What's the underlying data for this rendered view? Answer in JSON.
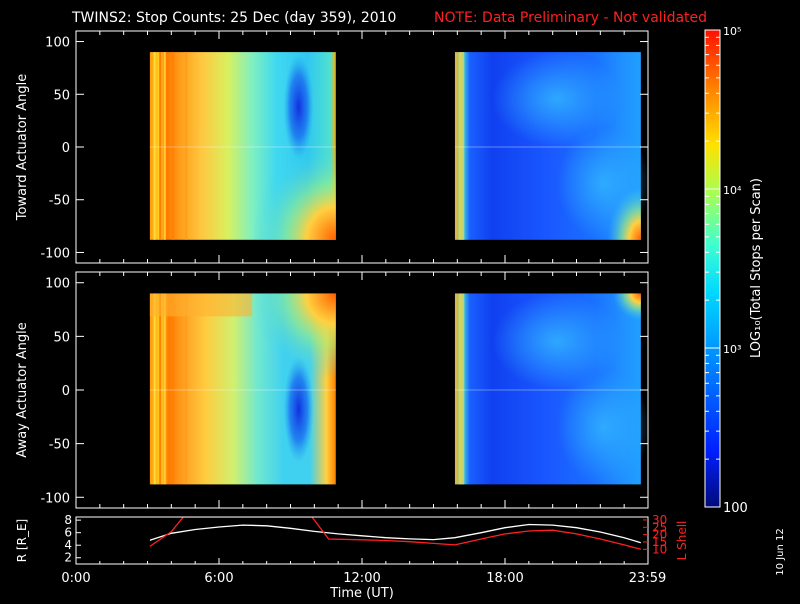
{
  "title": "TWINS2: Stop Counts: 25 Dec (day 359), 2010",
  "note": "NOTE: Data Preliminary - Not validated",
  "side_date": "10 Jun 12",
  "colors": {
    "note": "#ff2020",
    "ephem_r": "#ffffff",
    "ephem_l": "#ff2020",
    "axis": "#ffffff",
    "background": "#000000"
  },
  "chart_data": [
    {
      "type": "heatmap",
      "name": "toward",
      "ylabel": "Toward Actuator Angle",
      "ylim": [
        -110,
        110
      ],
      "yticks": [
        -100,
        -50,
        0,
        50,
        100
      ],
      "xlim_hours": [
        0,
        24
      ],
      "data_blocks_hours": [
        [
          3.1,
          10.9
        ],
        [
          15.9,
          23.7
        ]
      ],
      "angle_range": [
        -88,
        90
      ],
      "grid": false
    },
    {
      "type": "heatmap",
      "name": "away",
      "ylabel": "Away Actuator Angle",
      "ylim": [
        -110,
        110
      ],
      "yticks": [
        -100,
        -50,
        0,
        50,
        100
      ],
      "xlim_hours": [
        0,
        24
      ],
      "data_blocks_hours": [
        [
          3.1,
          10.9
        ],
        [
          15.9,
          23.7
        ]
      ],
      "angle_range": [
        -88,
        90
      ],
      "grid": false
    },
    {
      "type": "line",
      "name": "ephemeris",
      "ylabel_left": "R [R_E]",
      "ylabel_right": "L Shell",
      "xlabel": "Time (UT)",
      "xticks": [
        "0:00",
        "6:00",
        "12:00",
        "18:00",
        "23:59"
      ],
      "xtick_hours": [
        0,
        6,
        12,
        18,
        23.98
      ],
      "ylim_left": [
        1,
        8.5
      ],
      "yticks_left": [
        2,
        4,
        6,
        8
      ],
      "ylim_right": [
        0,
        32
      ],
      "yticks_right": [
        10,
        15,
        20,
        25,
        30
      ],
      "series": [
        {
          "axis": "left",
          "x": [
            3.1,
            4,
            5,
            6,
            7,
            8,
            9,
            10,
            11,
            12,
            13,
            14,
            15,
            15.9,
            17,
            18,
            19,
            20,
            21,
            22,
            23,
            23.7
          ],
          "y": [
            4.8,
            5.9,
            6.5,
            6.9,
            7.2,
            7.1,
            6.7,
            6.2,
            5.8,
            5.5,
            5.2,
            5.0,
            4.9,
            5.2,
            6.0,
            6.8,
            7.3,
            7.2,
            6.8,
            6.1,
            5.2,
            4.4
          ]
        },
        {
          "axis": "right",
          "x": [
            3.1,
            4.0,
            4.5,
            9.9,
            10.6,
            12,
            13,
            14,
            15,
            15.9,
            17,
            18,
            19,
            20,
            21,
            22,
            23,
            23.7
          ],
          "y": [
            12,
            22,
            32,
            32,
            17,
            16.5,
            16,
            15.2,
            14,
            13,
            17,
            20.5,
            22.5,
            23,
            20.5,
            17,
            13,
            10
          ]
        }
      ]
    }
  ],
  "colorbar": {
    "label": "LOG₁₀(Total Stops per Scan)",
    "scale": "log",
    "range": [
      100,
      100000
    ],
    "major_ticks": [
      {
        "value": 100,
        "label": "100"
      },
      {
        "value": 1000,
        "label": "10³"
      },
      {
        "value": 10000,
        "label": "10⁴"
      },
      {
        "value": 100000,
        "label": "10⁵"
      }
    ]
  }
}
